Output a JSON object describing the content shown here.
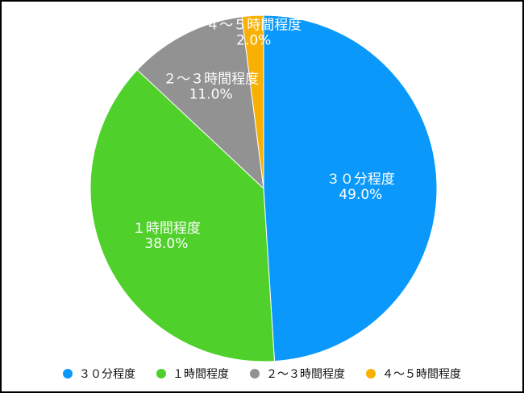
{
  "chart_data": {
    "type": "pie",
    "title": "",
    "legend_position": "bottom",
    "start_angle_deg": 0,
    "direction": "clockwise",
    "slices": [
      {
        "label": "３０分程度",
        "value": 49.0,
        "display": "49.0%",
        "color": "#0a99fb"
      },
      {
        "label": "１時間程度",
        "value": 38.0,
        "display": "38.0%",
        "color": "#4fd02b"
      },
      {
        "label": "２～３時間程度",
        "value": 11.0,
        "display": "11.0%",
        "color": "#929292"
      },
      {
        "label": "４～５時間程度",
        "value": 2.0,
        "display": "2.0%",
        "color": "#f8b003"
      }
    ]
  }
}
